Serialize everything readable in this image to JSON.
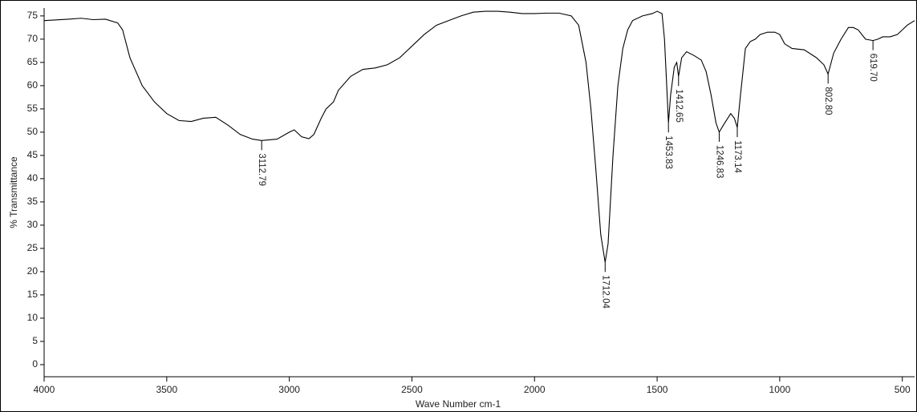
{
  "chart_data": {
    "type": "line",
    "x_label": "Wave Number cm-1",
    "y_label": "% Transmittance",
    "xlim": [
      4000,
      450
    ],
    "ylim": [
      -2.6,
      76.7
    ],
    "xticks": [
      4000,
      3500,
      3000,
      2500,
      2000,
      1500,
      1000,
      500
    ],
    "yticks": [
      0,
      5,
      10,
      15,
      20,
      25,
      30,
      35,
      40,
      45,
      50,
      55,
      60,
      65,
      70,
      75
    ],
    "x": [
      4000,
      3900,
      3850,
      3800,
      3750,
      3700,
      3680,
      3650,
      3600,
      3550,
      3500,
      3450,
      3400,
      3350,
      3300,
      3250,
      3200,
      3150,
      3112.79,
      3050,
      3000,
      2980,
      2950,
      2920,
      2900,
      2870,
      2850,
      2820,
      2800,
      2750,
      2700,
      2650,
      2600,
      2550,
      2500,
      2450,
      2400,
      2350,
      2300,
      2250,
      2200,
      2150,
      2100,
      2050,
      2000,
      1950,
      1900,
      1850,
      1820,
      1790,
      1770,
      1750,
      1730,
      1712.04,
      1700,
      1680,
      1660,
      1640,
      1620,
      1600,
      1560,
      1520,
      1500,
      1480,
      1470,
      1460,
      1453.83,
      1445,
      1430,
      1420,
      1412.65,
      1400,
      1380,
      1350,
      1320,
      1300,
      1280,
      1260,
      1246.83,
      1230,
      1200,
      1185,
      1173.14,
      1160,
      1140,
      1120,
      1100,
      1080,
      1050,
      1020,
      1000,
      980,
      950,
      900,
      850,
      820,
      802.8,
      780,
      750,
      720,
      700,
      680,
      650,
      619.7,
      600,
      580,
      550,
      520,
      500,
      480,
      450
    ],
    "series": [
      {
        "color": "#000000",
        "values": [
          74,
          74.3,
          74.5,
          74.2,
          74.3,
          73.5,
          72,
          66,
          60,
          56.5,
          54,
          52.5,
          52.3,
          53,
          53.2,
          51.5,
          49.5,
          48.5,
          48.2,
          48.5,
          50,
          50.5,
          49,
          48.6,
          49.5,
          53,
          55,
          56.5,
          59,
          62,
          63.5,
          63.8,
          64.5,
          66,
          68.5,
          71,
          73,
          74,
          75,
          75.8,
          76,
          76,
          75.8,
          75.5,
          75.5,
          75.6,
          75.6,
          75,
          73,
          65,
          55,
          42,
          28,
          22,
          26,
          45,
          60,
          68,
          72,
          74,
          75,
          75.5,
          76,
          75.5,
          70,
          59,
          52,
          58,
          64,
          65,
          62,
          66,
          67.3,
          66.5,
          65.5,
          63,
          58,
          52,
          50,
          51.5,
          54,
          53,
          51,
          58,
          68,
          69.5,
          70,
          71,
          71.5,
          71.5,
          71,
          69,
          68,
          67.7,
          66,
          64.5,
          62.5,
          67,
          70,
          72.5,
          72.5,
          72,
          70,
          69.7,
          70,
          70.5,
          70.5,
          71,
          72,
          73,
          74
        ]
      }
    ],
    "peaks": [
      {
        "x": 3112.79,
        "y": 48.2,
        "label": "3112.79"
      },
      {
        "x": 1712.04,
        "y": 22,
        "label": "1712.04"
      },
      {
        "x": 1453.83,
        "y": 52,
        "label": "1453.83"
      },
      {
        "x": 1412.65,
        "y": 62,
        "label": "1412.65"
      },
      {
        "x": 1246.83,
        "y": 50,
        "label": "1246.83"
      },
      {
        "x": 1173.14,
        "y": 51,
        "label": "1173.14"
      },
      {
        "x": 802.8,
        "y": 62.5,
        "label": "802.80"
      },
      {
        "x": 619.7,
        "y": 69.7,
        "label": "619.70"
      }
    ]
  }
}
